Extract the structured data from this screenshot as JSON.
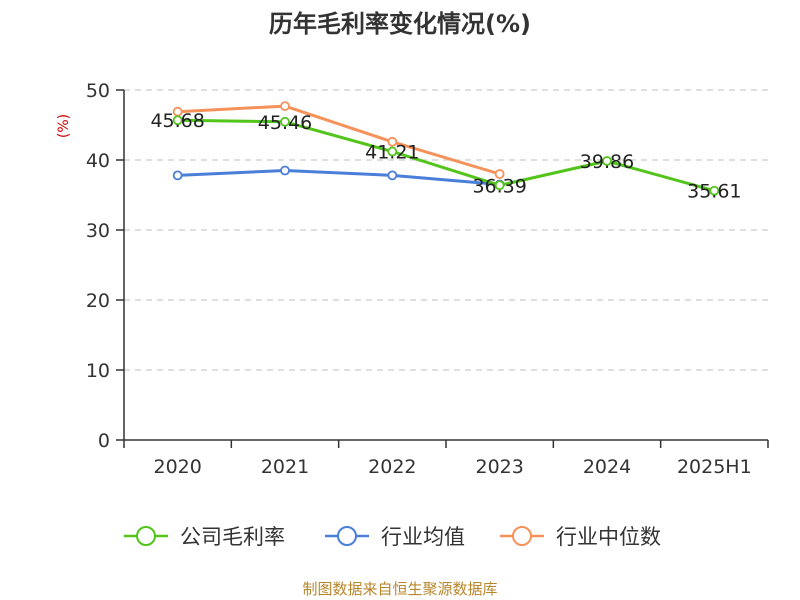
{
  "chart_data": {
    "type": "line",
    "title": "历年毛利率变化情况(%)",
    "ylabel": "(%)",
    "xlabel": "",
    "categories": [
      "2020",
      "2021",
      "2022",
      "2023",
      "2024",
      "2025H1"
    ],
    "ylim": [
      0,
      50
    ],
    "yticks": [
      0,
      10,
      20,
      30,
      40,
      50
    ],
    "grid": true,
    "legend_position": "bottom",
    "series": [
      {
        "name": "公司毛利率",
        "color": "#52c41a",
        "values": [
          45.68,
          45.46,
          41.21,
          36.39,
          39.86,
          35.61
        ],
        "labels": [
          "45.68",
          "45.46",
          "41.21",
          "36.39",
          "39.86",
          "35.61"
        ]
      },
      {
        "name": "行业均值",
        "color": "#4a7fd9",
        "values": [
          37.8,
          38.5,
          37.8,
          36.5,
          null,
          null
        ]
      },
      {
        "name": "行业中位数",
        "color": "#f5925a",
        "values": [
          46.9,
          47.7,
          42.6,
          38.0,
          null,
          null
        ]
      }
    ]
  },
  "footer": "制图数据来自恒生聚源数据库"
}
